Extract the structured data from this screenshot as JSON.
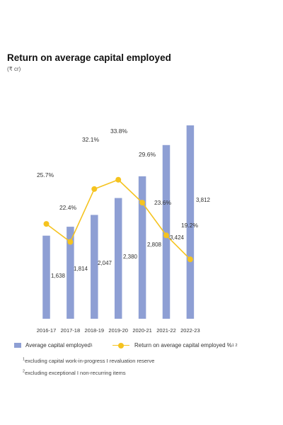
{
  "chart_data": {
    "type": "bar+line",
    "title": "Return on average capital employed",
    "unit": "(₹ cr)",
    "categories": [
      "2016-17",
      "2017-18",
      "2018-19",
      "2019-20",
      "2020-21",
      "2021-22",
      "2022-23"
    ],
    "series": [
      {
        "name": "Average capital employed",
        "name_sup": "1",
        "type": "bar",
        "color": "#8e9fd4",
        "values": [
          1638,
          1814,
          2047,
          2380,
          2808,
          3424,
          3812
        ],
        "labels": [
          "1,638",
          "1,814",
          "2,047",
          "2,380",
          "2,808",
          "3,424",
          "3,812"
        ]
      },
      {
        "name": "Return on average capital employed %",
        "name_sup": "1 2",
        "type": "line",
        "color": "#f5c31f",
        "values": [
          25.7,
          22.4,
          32.1,
          33.8,
          29.6,
          23.6,
          19.2
        ],
        "labels": [
          "25.7%",
          "22.4%",
          "32.1%",
          "33.8%",
          "29.6%",
          "23.6%",
          "19.2%"
        ]
      }
    ],
    "bar_axis_range": [
      0,
      3812
    ],
    "line_axis_range": [
      0,
      50
    ],
    "grid": false,
    "legend_position": "bottom"
  },
  "footnotes": [
    {
      "sup": "1",
      "text": "excluding capital work-in-progress I revaluation reserve"
    },
    {
      "sup": "2",
      "text": "excluding exceptional I non-recurring items"
    }
  ]
}
